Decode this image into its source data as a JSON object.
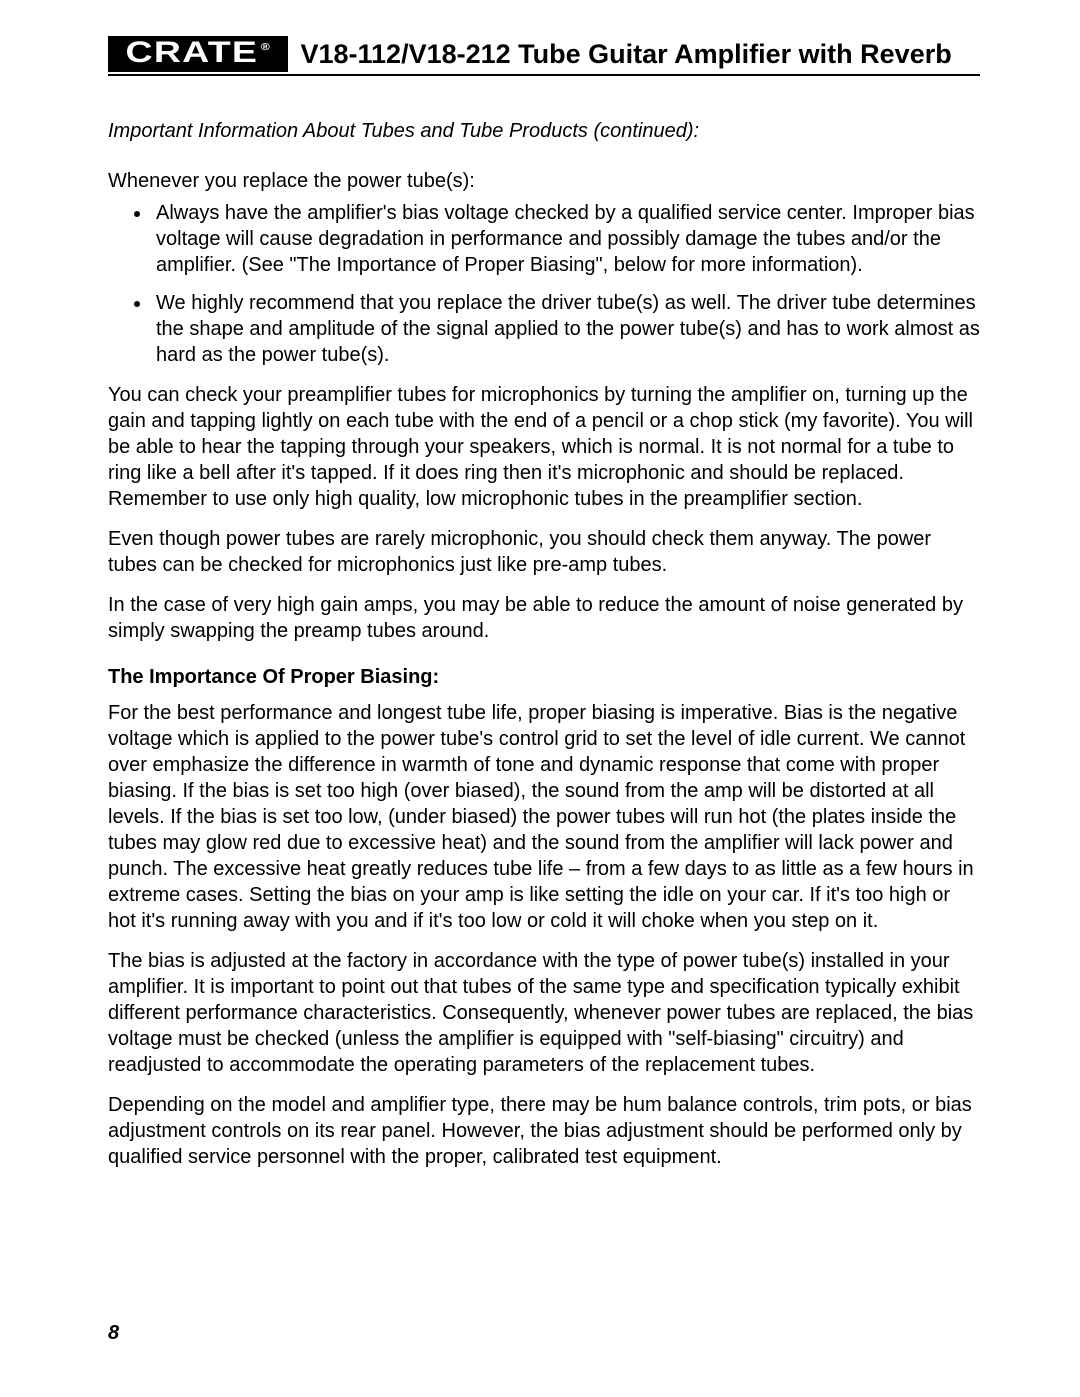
{
  "header": {
    "brand": "CRATE",
    "registered": "®",
    "title": "V18-112/V18-212 Tube Guitar Amplifier with Reverb"
  },
  "doc": {
    "subtitle": "Important Information About Tubes and Tube Products (continued):",
    "intro": "Whenever you replace the power tube(s):",
    "bullets": [
      "Always have the amplifier's bias voltage checked by a qualified service center. Improper bias voltage will cause degradation in performance and possibly damage the tubes and/or the amplifier. (See \"The Importance of Proper Biasing\", below for more information).",
      "We highly recommend that you replace the driver tube(s) as well. The driver tube determines the shape and amplitude of the signal applied to the power tube(s) and has to work almost as hard as the power tube(s)."
    ],
    "p1": "You can check your preamplifier tubes for microphonics by turning the amplifier on, turning up the gain and tapping lightly on each tube with the end of a pencil or a chop stick (my favorite). You will be able to hear the tapping through your speakers, which is normal. It is not normal for a tube to ring like a bell after it's tapped. If it does ring then it's microphonic and should be replaced. Remember to use only high quality, low microphonic tubes in the preamplifier section.",
    "p2": "Even though power tubes are rarely microphonic, you should check them anyway. The power tubes can be checked for microphonics just like pre-amp tubes.",
    "p3": "In the case of very high gain amps, you may be able to reduce the amount of noise generated by simply swapping the preamp tubes around.",
    "section_head": "The Importance Of Proper Biasing:",
    "p4": "For the best performance and longest tube life, proper biasing is imperative. Bias is the negative voltage which is applied to the power tube's control grid to set the level of idle current. We cannot over emphasize the difference in warmth of tone and dynamic response that come with proper biasing. If the bias is set too high (over biased), the sound from the amp will be distorted at all levels. If the bias is set too low, (under biased) the power tubes will run hot (the plates inside the tubes may glow red due to excessive heat) and the sound from the amplifier will lack power and punch. The excessive heat greatly reduces tube life – from a few days to as little as a few hours in extreme cases. Setting the bias on your amp is like setting the idle on your car. If it's too high or hot it's running away with you and if it's too low or cold it will choke when you step on it.",
    "p5": "The bias is adjusted at the factory in accordance with the type of power tube(s) installed in your amplifier. It is important to point out that tubes of the same type and specification typically exhibit different performance characteristics. Consequently, whenever power tubes are replaced, the bias voltage must be checked (unless the amplifier is equipped with \"self-biasing\" circuitry) and readjusted to accommodate the operating parameters of the replacement tubes.",
    "p6": "Depending on the model and amplifier type, there may be hum balance controls, trim pots, or bias adjustment controls on its rear panel. However, the bias adjustment should be performed only by qualified service personnel with the proper, calibrated test equipment."
  },
  "page_number": "8"
}
